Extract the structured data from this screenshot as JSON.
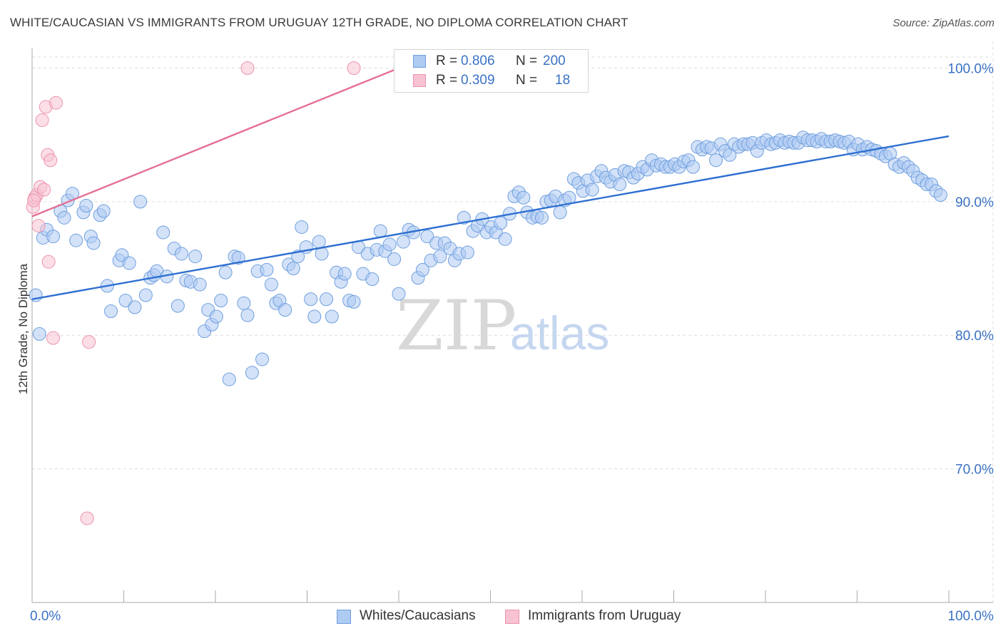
{
  "title": "WHITE/CAUCASIAN VS IMMIGRANTS FROM URUGUAY 12TH GRADE, NO DIPLOMA CORRELATION CHART",
  "source": "Source: ZipAtlas.com",
  "watermark": {
    "zip": "ZIP",
    "atlas": "atlas"
  },
  "colors": {
    "blue_fill": "#aecbf2",
    "blue_stroke": "#6f9fdf",
    "blue_line": "#2e6fd1",
    "pink_fill": "#f7c2d1",
    "pink_stroke": "#ec93ad",
    "pink_line": "#e46f94",
    "axis_label": "#3a72c4",
    "grid": "#dddddd"
  },
  "legend": {
    "rows": [
      {
        "r_label": "R =",
        "r_value": "0.806",
        "n_label": "N =",
        "n_value": "200",
        "color": "blue"
      },
      {
        "r_label": "R =",
        "r_value": "0.309",
        "n_label": "N =",
        "n_value": "18",
        "color": "pink"
      }
    ]
  },
  "bottom_legend": [
    {
      "label": "Whites/Caucasians",
      "color": "blue"
    },
    {
      "label": "Immigrants from Uruguay",
      "color": "pink"
    }
  ],
  "chart_data": {
    "type": "scatter",
    "title": "WHITE/CAUCASIAN VS IMMIGRANTS FROM URUGUAY 12TH GRADE, NO DIPLOMA CORRELATION CHART",
    "xlabel": "",
    "ylabel": "12th Grade, No Diploma",
    "xlim": [
      0,
      100
    ],
    "ylim": [
      60,
      102
    ],
    "x_tick_labels": [
      {
        "value": 0,
        "label": "0.0%"
      },
      {
        "value": 100,
        "label": "100.0%"
      }
    ],
    "y_tick_labels": [
      {
        "value": 100,
        "label": "100.0%"
      },
      {
        "value": 90,
        "label": "90.0%"
      },
      {
        "value": 80,
        "label": "80.0%"
      },
      {
        "value": 70,
        "label": "70.0%"
      }
    ],
    "series": [
      {
        "name": "Whites/Caucasians",
        "color": "blue",
        "r": 0.806,
        "n": 200,
        "trend": {
          "x": [
            0,
            100
          ],
          "y": [
            82.7,
            94.9
          ]
        },
        "points": [
          [
            0.4,
            83
          ],
          [
            0.8,
            80.1
          ],
          [
            1.2,
            87.3
          ],
          [
            1.6,
            87.9
          ],
          [
            2.3,
            87.4
          ],
          [
            3.1,
            89.3
          ],
          [
            3.5,
            88.8
          ],
          [
            3.9,
            90.1
          ],
          [
            4.4,
            90.6
          ],
          [
            4.8,
            87.1
          ],
          [
            5.6,
            89.2
          ],
          [
            5.9,
            89.7
          ],
          [
            6.4,
            87.4
          ],
          [
            6.7,
            86.9
          ],
          [
            7.4,
            89
          ],
          [
            7.8,
            89.3
          ],
          [
            8.2,
            83.7
          ],
          [
            8.6,
            81.8
          ],
          [
            9.5,
            85.6
          ],
          [
            9.8,
            86
          ],
          [
            10.2,
            82.6
          ],
          [
            10.6,
            85.4
          ],
          [
            11.2,
            82.1
          ],
          [
            11.8,
            90
          ],
          [
            12.4,
            83
          ],
          [
            12.9,
            84.3
          ],
          [
            13.3,
            84.5
          ],
          [
            13.6,
            84.8
          ],
          [
            14.3,
            87.7
          ],
          [
            14.7,
            84.4
          ],
          [
            15.5,
            86.5
          ],
          [
            15.9,
            82.2
          ],
          [
            16.3,
            86.1
          ],
          [
            16.8,
            84.1
          ],
          [
            17.3,
            84
          ],
          [
            17.8,
            85.9
          ],
          [
            18.3,
            83.8
          ],
          [
            18.8,
            80.3
          ],
          [
            19.2,
            81.9
          ],
          [
            19.6,
            80.8
          ],
          [
            20.1,
            81.4
          ],
          [
            20.6,
            82.6
          ],
          [
            21.1,
            84.7
          ],
          [
            21.5,
            76.7
          ],
          [
            22.1,
            85.9
          ],
          [
            22.5,
            85.8
          ],
          [
            23.1,
            82.4
          ],
          [
            23.5,
            81.5
          ],
          [
            24,
            77.2
          ],
          [
            24.6,
            84.8
          ],
          [
            25.1,
            78.2
          ],
          [
            25.6,
            84.9
          ],
          [
            26.1,
            83.8
          ],
          [
            26.6,
            82.4
          ],
          [
            27,
            82.6
          ],
          [
            27.6,
            81.9
          ],
          [
            28,
            85.3
          ],
          [
            28.5,
            85
          ],
          [
            29,
            85.9
          ],
          [
            29.4,
            88.1
          ],
          [
            29.9,
            86.6
          ],
          [
            30.4,
            82.7
          ],
          [
            30.8,
            81.4
          ],
          [
            31.3,
            87
          ],
          [
            31.6,
            86.1
          ],
          [
            32.1,
            82.7
          ],
          [
            32.7,
            81.4
          ],
          [
            33.2,
            84.7
          ],
          [
            33.7,
            84
          ],
          [
            34.1,
            84.6
          ],
          [
            34.6,
            82.6
          ],
          [
            35.1,
            82.5
          ],
          [
            35.6,
            86.6
          ],
          [
            36.1,
            84.6
          ],
          [
            36.6,
            86.1
          ],
          [
            37.1,
            84.2
          ],
          [
            37.6,
            86.4
          ],
          [
            38,
            87.8
          ],
          [
            38.5,
            86.3
          ],
          [
            39,
            86.8
          ],
          [
            39.5,
            85.7
          ],
          [
            40,
            83.1
          ],
          [
            40.5,
            87
          ],
          [
            41.1,
            87.9
          ],
          [
            41.6,
            87.7
          ],
          [
            42.1,
            84.3
          ],
          [
            42.6,
            84.9
          ],
          [
            43.1,
            87.4
          ],
          [
            43.5,
            85.6
          ],
          [
            44.1,
            86.9
          ],
          [
            44.5,
            85.9
          ],
          [
            45,
            86.9
          ],
          [
            45.6,
            86.5
          ],
          [
            46.1,
            85.6
          ],
          [
            46.6,
            86.1
          ],
          [
            47.1,
            88.8
          ],
          [
            47.5,
            86.2
          ],
          [
            48.1,
            87.8
          ],
          [
            48.6,
            88.2
          ],
          [
            49.1,
            88.7
          ],
          [
            49.6,
            87.7
          ],
          [
            50.1,
            88.1
          ],
          [
            50.6,
            87.7
          ],
          [
            51.1,
            88.4
          ],
          [
            51.6,
            87.2
          ],
          [
            52.1,
            89.1
          ],
          [
            52.6,
            90.4
          ],
          [
            53.1,
            90.7
          ],
          [
            53.6,
            90.3
          ],
          [
            54,
            89.2
          ],
          [
            54.6,
            88.8
          ],
          [
            55.1,
            88.9
          ],
          [
            55.6,
            88.8
          ],
          [
            56.1,
            90
          ],
          [
            56.6,
            90.1
          ],
          [
            57.1,
            90.4
          ],
          [
            57.6,
            89.2
          ],
          [
            58.1,
            90.1
          ],
          [
            58.6,
            90.3
          ],
          [
            59.1,
            91.7
          ],
          [
            59.6,
            91.4
          ],
          [
            60.1,
            90.8
          ],
          [
            60.6,
            91.6
          ],
          [
            61.1,
            90.9
          ],
          [
            61.6,
            91.9
          ],
          [
            62.1,
            92.3
          ],
          [
            62.6,
            91.8
          ],
          [
            63.1,
            91.5
          ],
          [
            63.6,
            92
          ],
          [
            64.1,
            91.3
          ],
          [
            64.6,
            92.3
          ],
          [
            65.1,
            92.2
          ],
          [
            65.6,
            91.8
          ],
          [
            66.1,
            92.1
          ],
          [
            66.6,
            92.6
          ],
          [
            67.1,
            92.4
          ],
          [
            67.6,
            93.1
          ],
          [
            68.1,
            92.7
          ],
          [
            68.6,
            92.8
          ],
          [
            69.1,
            92.6
          ],
          [
            69.6,
            92.6
          ],
          [
            70.1,
            92.8
          ],
          [
            70.6,
            92.6
          ],
          [
            71.1,
            93
          ],
          [
            71.6,
            93.1
          ],
          [
            72.1,
            92.6
          ],
          [
            72.6,
            94.1
          ],
          [
            73.1,
            93.9
          ],
          [
            73.6,
            94.1
          ],
          [
            74.1,
            94
          ],
          [
            74.6,
            93.1
          ],
          [
            75.1,
            94.3
          ],
          [
            75.6,
            93.8
          ],
          [
            76.1,
            93.5
          ],
          [
            76.6,
            94.3
          ],
          [
            77.1,
            94.1
          ],
          [
            77.6,
            94.3
          ],
          [
            78.1,
            94.3
          ],
          [
            78.6,
            94.4
          ],
          [
            79.1,
            93.8
          ],
          [
            79.6,
            94.4
          ],
          [
            80.1,
            94.6
          ],
          [
            80.6,
            94.3
          ],
          [
            81.1,
            94.4
          ],
          [
            81.6,
            94.6
          ],
          [
            82.1,
            94.4
          ],
          [
            82.6,
            94.5
          ],
          [
            83.1,
            94.4
          ],
          [
            83.6,
            94.4
          ],
          [
            84.1,
            94.8
          ],
          [
            84.6,
            94.6
          ],
          [
            85.1,
            94.6
          ],
          [
            85.6,
            94.5
          ],
          [
            86.1,
            94.7
          ],
          [
            86.6,
            94.5
          ],
          [
            87.1,
            94.5
          ],
          [
            87.6,
            94.6
          ],
          [
            88.1,
            94.5
          ],
          [
            88.6,
            94.4
          ],
          [
            89.1,
            94.5
          ],
          [
            89.6,
            93.9
          ],
          [
            90.1,
            94.3
          ],
          [
            90.6,
            93.9
          ],
          [
            91.1,
            94.1
          ],
          [
            91.6,
            93.9
          ],
          [
            92.1,
            93.8
          ],
          [
            92.6,
            93.6
          ],
          [
            93.1,
            93.4
          ],
          [
            93.6,
            93.6
          ],
          [
            94.1,
            92.8
          ],
          [
            94.6,
            92.6
          ],
          [
            95.1,
            92.9
          ],
          [
            95.6,
            92.6
          ],
          [
            96.1,
            92.3
          ],
          [
            96.6,
            91.8
          ],
          [
            97.1,
            91.6
          ],
          [
            97.6,
            91.3
          ],
          [
            98.1,
            91.3
          ],
          [
            98.6,
            90.8
          ],
          [
            99.1,
            90.5
          ]
        ]
      },
      {
        "name": "Immigrants from Uruguay",
        "color": "pink",
        "r": 0.309,
        "n": 18,
        "trend": {
          "x": [
            0,
            40
          ],
          "y": [
            88.9,
            100
          ]
        },
        "points": [
          [
            0.1,
            89.6
          ],
          [
            0.3,
            90.3
          ],
          [
            0.5,
            90.5
          ],
          [
            0.7,
            88.2
          ],
          [
            0.9,
            91.1
          ],
          [
            1.1,
            96.1
          ],
          [
            1.3,
            90.9
          ],
          [
            1.5,
            97.1
          ],
          [
            1.7,
            93.5
          ],
          [
            1.8,
            85.5
          ],
          [
            2,
            93.1
          ],
          [
            2.3,
            79.8
          ],
          [
            2.6,
            97.4
          ],
          [
            6.2,
            79.5
          ],
          [
            6,
            66.3
          ],
          [
            23.5,
            100
          ],
          [
            35.1,
            100
          ],
          [
            0.2,
            90.1
          ]
        ]
      }
    ]
  }
}
